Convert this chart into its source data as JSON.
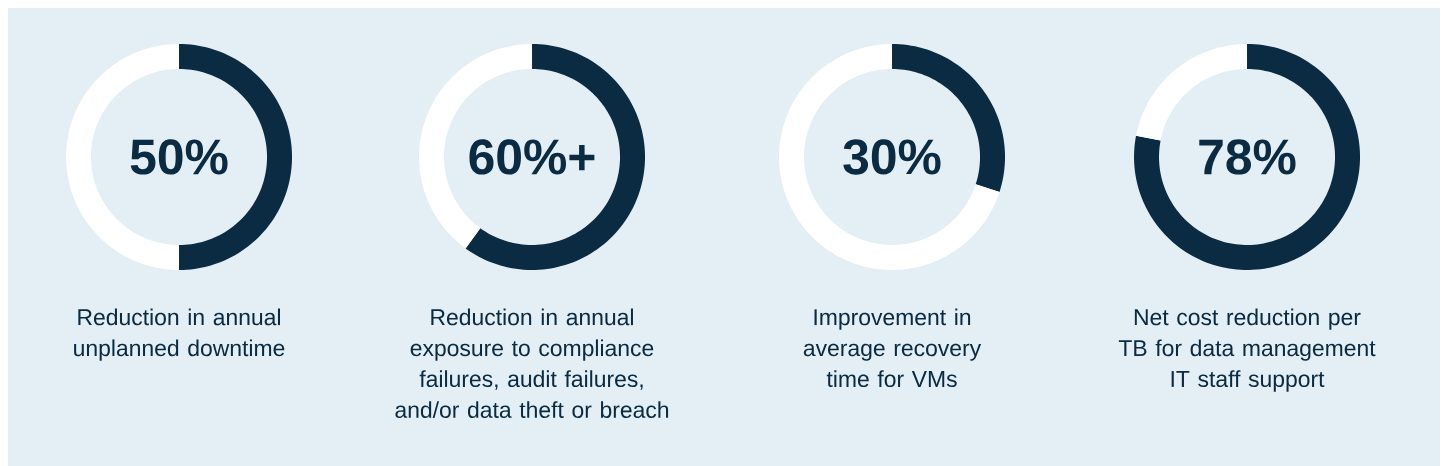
{
  "chart_data": [
    {
      "type": "donut",
      "title": "50%",
      "categories": [
        null,
        null
      ],
      "values": [
        50,
        50
      ],
      "colors": [
        "#0b2b42",
        "#ffffff"
      ],
      "annotations": [
        "Reduction in annual unplanned downtime"
      ]
    },
    {
      "type": "donut",
      "title": "60%+",
      "categories": [
        null,
        null
      ],
      "values": [
        60,
        40
      ],
      "colors": [
        "#0b2b42",
        "#ffffff"
      ],
      "annotations": [
        "Reduction in annual exposure to compliance failures, audit failures, and/or data theft or breach"
      ]
    },
    {
      "type": "donut",
      "title": "30%",
      "categories": [
        null,
        null
      ],
      "values": [
        30,
        70
      ],
      "colors": [
        "#0b2b42",
        "#ffffff"
      ],
      "annotations": [
        "Improvement in average recovery time for VMs"
      ]
    },
    {
      "type": "donut",
      "title": "78%",
      "categories": [
        null,
        null
      ],
      "values": [
        78,
        22
      ],
      "colors": [
        "#0b2b42",
        "#ffffff"
      ],
      "annotations": [
        "Net cost reduction per TB for data management IT staff support"
      ]
    }
  ]
}
